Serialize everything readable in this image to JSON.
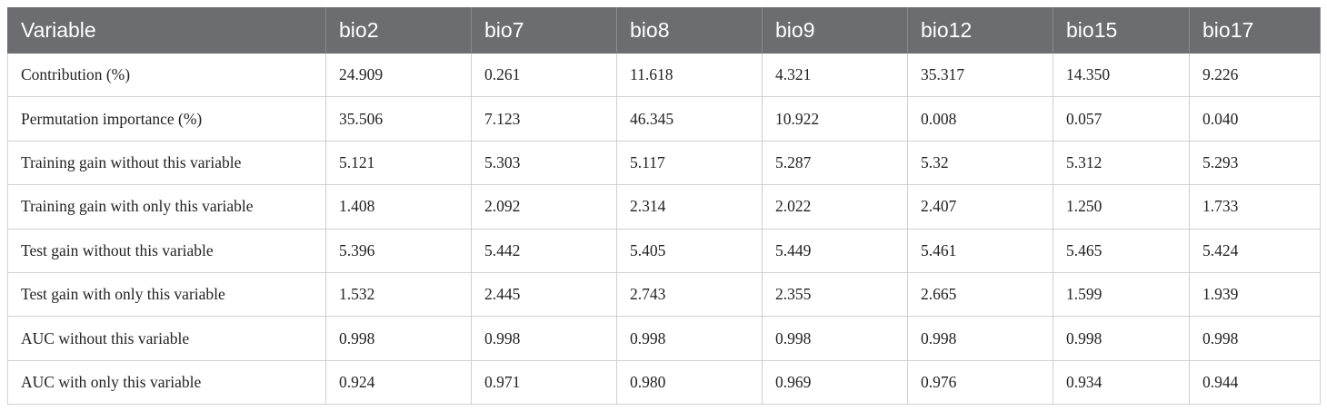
{
  "table": {
    "header": [
      "Variable",
      "bio2",
      "bio7",
      "bio8",
      "bio9",
      "bio12",
      "bio15",
      "bio17"
    ],
    "rows": [
      [
        "Contribution (%)",
        "24.909",
        "0.261",
        "11.618",
        "4.321",
        "35.317",
        "14.350",
        "9.226"
      ],
      [
        "Permutation importance (%)",
        "35.506",
        "7.123",
        "46.345",
        "10.922",
        "0.008",
        "0.057",
        "0.040"
      ],
      [
        "Training gain without this variable",
        "5.121",
        "5.303",
        "5.117",
        "5.287",
        "5.32",
        "5.312",
        "5.293"
      ],
      [
        "Training gain with only this variable",
        "1.408",
        "2.092",
        "2.314",
        "2.022",
        "2.407",
        "1.250",
        "1.733"
      ],
      [
        "Test gain without this variable",
        "5.396",
        "5.442",
        "5.405",
        "5.449",
        "5.461",
        "5.465",
        "5.424"
      ],
      [
        "Test gain with only this variable",
        "1.532",
        "2.445",
        "2.743",
        "2.355",
        "2.665",
        "1.599",
        "1.939"
      ],
      [
        "AUC without this variable",
        "0.998",
        "0.998",
        "0.998",
        "0.998",
        "0.998",
        "0.998",
        "0.998"
      ],
      [
        "AUC with only this variable",
        "0.924",
        "0.971",
        "0.980",
        "0.969",
        "0.976",
        "0.934",
        "0.944"
      ]
    ]
  }
}
